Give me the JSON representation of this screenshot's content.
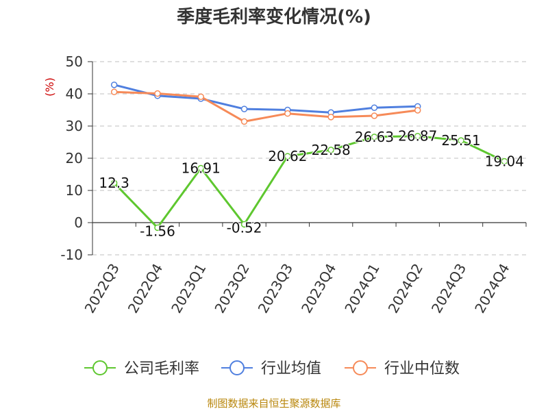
{
  "chart_data": {
    "type": "line",
    "title": "季度毛利率变化情况(%)",
    "ylabel": "(%)",
    "xlabel": "",
    "categories": [
      "2022Q3",
      "2022Q4",
      "2023Q1",
      "2023Q2",
      "2023Q3",
      "2023Q4",
      "2024Q1",
      "2024Q2",
      "2024Q3",
      "2024Q4"
    ],
    "ylim": [
      -10,
      50
    ],
    "yticks": [
      -10,
      0,
      10,
      20,
      30,
      40,
      50
    ],
    "grid": true,
    "legend_position": "bottom",
    "series": [
      {
        "name": "公司毛利率",
        "color": "#5ec72f",
        "values": [
          12.3,
          -1.56,
          16.91,
          -0.52,
          20.62,
          22.58,
          26.63,
          26.87,
          25.51,
          19.04
        ],
        "labels": [
          "12.3",
          "-1.56",
          "16.91",
          "-0.52",
          "20.62",
          "22.58",
          "26.63",
          "26.87",
          "25.51",
          "19.04"
        ]
      },
      {
        "name": "行业均值",
        "color": "#4f7fdf",
        "values": [
          42.8,
          39.4,
          38.5,
          35.3,
          35.0,
          34.2,
          35.7,
          36.1,
          null,
          null
        ]
      },
      {
        "name": "行业中位数",
        "color": "#f68a58",
        "values": [
          40.6,
          40.1,
          39.1,
          31.4,
          33.9,
          32.8,
          33.2,
          34.9,
          null,
          null
        ]
      }
    ]
  },
  "source": "制图数据来自恒生聚源数据库"
}
